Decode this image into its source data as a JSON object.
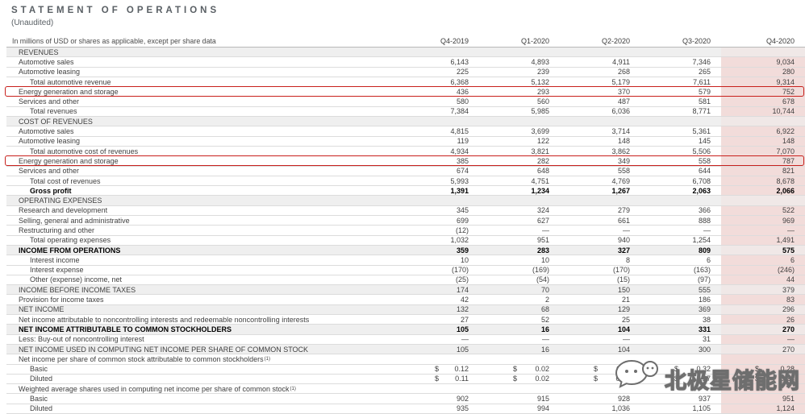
{
  "header": {
    "title": "STATEMENT OF OPERATIONS",
    "subtitle": "(Unaudited)",
    "note": "In millions of USD or shares as applicable, except per share data",
    "columns": [
      "Q4-2019",
      "Q1-2020",
      "Q2-2020",
      "Q3-2020",
      "Q4-2020"
    ]
  },
  "table": {
    "rows": [
      {
        "label": "REVENUES",
        "values": [
          "",
          "",
          "",
          "",
          ""
        ],
        "gray": true
      },
      {
        "label": "Automotive sales",
        "values": [
          "6,143",
          "4,893",
          "4,911",
          "7,346",
          "9,034"
        ]
      },
      {
        "label": "Automotive leasing",
        "values": [
          "225",
          "239",
          "268",
          "265",
          "280"
        ]
      },
      {
        "label": "Total automotive revenue",
        "values": [
          "6,368",
          "5,132",
          "5,179",
          "7,611",
          "9,314"
        ],
        "indent": 1
      },
      {
        "label": "Energy generation and storage",
        "values": [
          "436",
          "293",
          "370",
          "579",
          "752"
        ],
        "redbox": true
      },
      {
        "label": "Services and other",
        "values": [
          "580",
          "560",
          "487",
          "581",
          "678"
        ]
      },
      {
        "label": "Total revenues",
        "values": [
          "7,384",
          "5,985",
          "6,036",
          "8,771",
          "10,744"
        ],
        "indent": 1
      },
      {
        "label": "COST OF REVENUES",
        "values": [
          "",
          "",
          "",
          "",
          ""
        ],
        "gray": true
      },
      {
        "label": "Automotive sales",
        "values": [
          "4,815",
          "3,699",
          "3,714",
          "5,361",
          "6,922"
        ]
      },
      {
        "label": "Automotive leasing",
        "values": [
          "119",
          "122",
          "148",
          "145",
          "148"
        ]
      },
      {
        "label": "Total automotive cost of revenues",
        "values": [
          "4,934",
          "3,821",
          "3,862",
          "5,506",
          "7,070"
        ],
        "indent": 1
      },
      {
        "label": "Energy generation and storage",
        "values": [
          "385",
          "282",
          "349",
          "558",
          "787"
        ],
        "redbox": true
      },
      {
        "label": "Services and other",
        "values": [
          "674",
          "648",
          "558",
          "644",
          "821"
        ]
      },
      {
        "label": "Total cost of revenues",
        "values": [
          "5,993",
          "4,751",
          "4,769",
          "6,708",
          "8,678"
        ],
        "indent": 1
      },
      {
        "label": "Gross profit",
        "values": [
          "1,391",
          "1,234",
          "1,267",
          "2,063",
          "2,066"
        ],
        "indent": 1,
        "bold": true
      },
      {
        "label": "OPERATING EXPENSES",
        "values": [
          "",
          "",
          "",
          "",
          ""
        ],
        "gray": true
      },
      {
        "label": "Research and development",
        "values": [
          "345",
          "324",
          "279",
          "366",
          "522"
        ]
      },
      {
        "label": "Selling, general and administrative",
        "values": [
          "699",
          "627",
          "661",
          "888",
          "969"
        ]
      },
      {
        "label": "Restructuring and other",
        "values": [
          "(12)",
          "—",
          "—",
          "—",
          "—"
        ]
      },
      {
        "label": "Total operating expenses",
        "values": [
          "1,032",
          "951",
          "940",
          "1,254",
          "1,491"
        ],
        "indent": 1
      },
      {
        "label": "INCOME FROM OPERATIONS",
        "values": [
          "359",
          "283",
          "327",
          "809",
          "575"
        ],
        "gray": true,
        "bold": true
      },
      {
        "label": "Interest income",
        "values": [
          "10",
          "10",
          "8",
          "6",
          "6"
        ],
        "indent": 1
      },
      {
        "label": "Interest expense",
        "values": [
          "(170)",
          "(169)",
          "(170)",
          "(163)",
          "(246)"
        ],
        "indent": 1
      },
      {
        "label": "Other (expense) income, net",
        "values": [
          "(25)",
          "(54)",
          "(15)",
          "(97)",
          "44"
        ],
        "indent": 1
      },
      {
        "label": "INCOME BEFORE INCOME TAXES",
        "values": [
          "174",
          "70",
          "150",
          "555",
          "379"
        ],
        "gray": true
      },
      {
        "label": "Provision for income taxes",
        "values": [
          "42",
          "2",
          "21",
          "186",
          "83"
        ]
      },
      {
        "label": "NET INCOME",
        "values": [
          "132",
          "68",
          "129",
          "369",
          "296"
        ],
        "gray": true
      },
      {
        "label": "Net income attributable to noncontrolling interests and redeemable noncontrolling interests",
        "values": [
          "27",
          "52",
          "25",
          "38",
          "26"
        ]
      },
      {
        "label": "NET INCOME ATTRIBUTABLE TO COMMON STOCKHOLDERS",
        "values": [
          "105",
          "16",
          "104",
          "331",
          "270"
        ],
        "gray": true,
        "bold": true
      },
      {
        "label": "Less: Buy-out of noncontrolling interest",
        "values": [
          "—",
          "—",
          "—",
          "31",
          "—"
        ]
      },
      {
        "label": "NET INCOME USED IN COMPUTING NET INCOME PER SHARE OF COMMON STOCK",
        "values": [
          "105",
          "16",
          "104",
          "300",
          "270"
        ],
        "gray": true
      },
      {
        "label": "Net income per share of common stock attributable to common stockholders",
        "sup": "(1)",
        "values": [
          "",
          "",
          "",
          "",
          ""
        ]
      },
      {
        "label": "Basic",
        "values": [
          "0.12",
          "0.02",
          "0.11",
          "0.32",
          "0.28"
        ],
        "indent": 1,
        "dollar": true
      },
      {
        "label": "Diluted",
        "values": [
          "0.11",
          "0.02",
          "0.10",
          "0.27",
          "0.24"
        ],
        "indent": 1,
        "dollar": true
      },
      {
        "label": "Weighted average shares used in computing net income per share of common stock",
        "sup": "(1)",
        "values": [
          "",
          "",
          "",
          "",
          ""
        ]
      },
      {
        "label": "Basic",
        "values": [
          "902",
          "915",
          "928",
          "937",
          "951"
        ],
        "indent": 1
      },
      {
        "label": "Diluted",
        "values": [
          "935",
          "994",
          "1,036",
          "1,105",
          "1,124"
        ],
        "indent": 1
      }
    ]
  },
  "watermark": {
    "text": "北极星储能网",
    "icon": "wechat-icon"
  },
  "colors": {
    "highlight_pink": "#f2dcda",
    "row_gray": "#efefef",
    "callout_red": "#c8201c",
    "title_gray": "#595f64"
  }
}
